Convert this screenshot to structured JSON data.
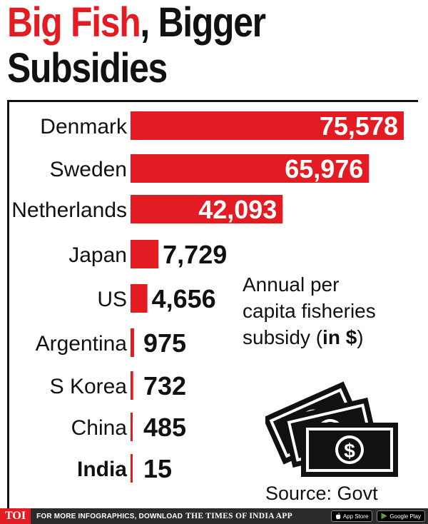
{
  "title": {
    "highlight": "Big Fish",
    "rest": ", Bigger",
    "line2": "Subsidies"
  },
  "chart_data": {
    "type": "bar",
    "orientation": "horizontal",
    "categories": [
      "Denmark",
      "Sweden",
      "Netherlands",
      "Japan",
      "US",
      "Argentina",
      "S Korea",
      "China",
      "India"
    ],
    "values": [
      75578,
      65976,
      42093,
      7729,
      4656,
      975,
      732,
      485,
      15
    ],
    "value_labels": [
      "75,578",
      "65,976",
      "42,093",
      "7,729",
      "4,656",
      "975",
      "732",
      "485",
      "15"
    ],
    "highlighted_category": "India",
    "bar_color": "#e31b23"
  },
  "annotation": {
    "line1": "Annual per",
    "line2": "capita fisheries",
    "line3_prefix": "subsidy (",
    "line3_bold": "in $",
    "line3_suffix": ")"
  },
  "source": "Source: Govt",
  "icon": "money-bills-icon",
  "footer": {
    "logo": "TOI",
    "text": "FOR MORE INFOGRAPHICS, DOWNLOAD",
    "brand": "THE TIMES OF INDIA APP",
    "appstore": "App Store",
    "playstore": "Google Play"
  },
  "colors": {
    "accent": "#e31b23",
    "text": "#111111",
    "footer_bg": "#2b2b2b"
  }
}
